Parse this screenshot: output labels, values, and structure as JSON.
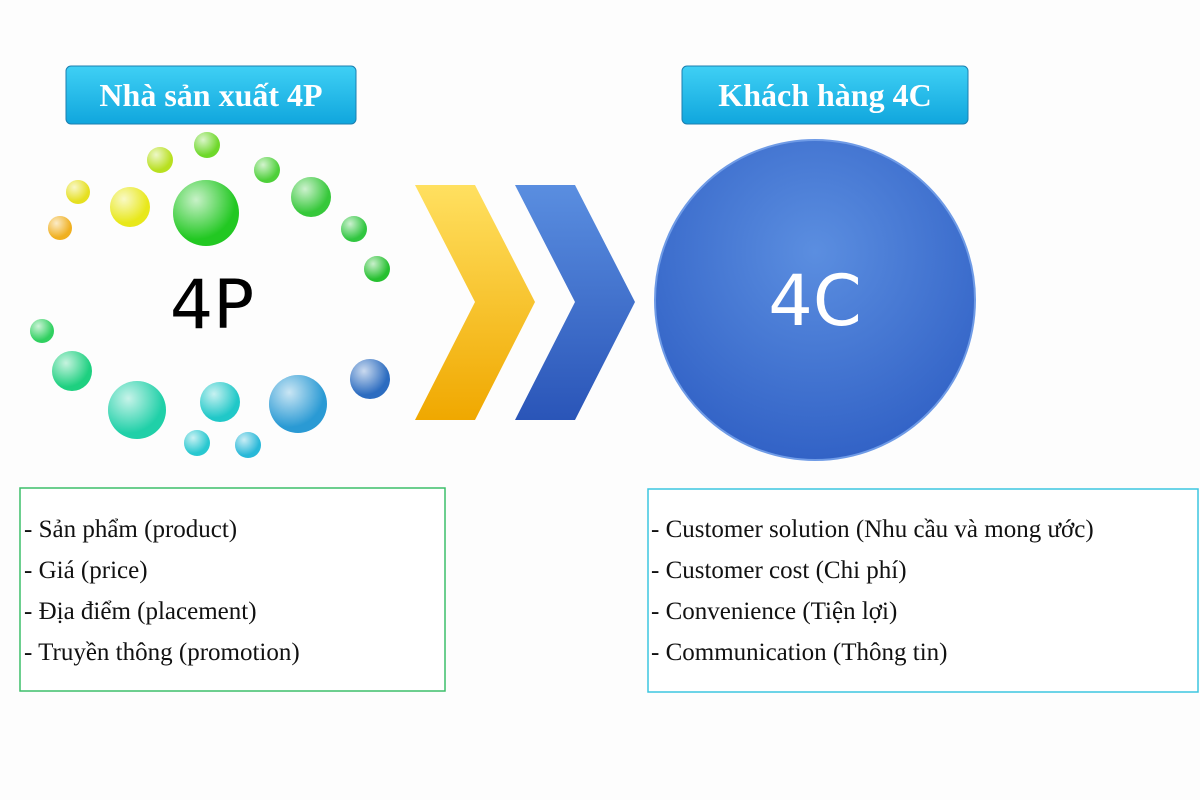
{
  "producer": {
    "title": "Nhà sản xuất 4P",
    "label": "4P",
    "items": [
      "- Sản phẩm (product)",
      "- Giá (price)",
      "- Địa điểm (placement)",
      "- Truyền thông (promotion)"
    ]
  },
  "customer": {
    "title": "Khách hàng 4C",
    "label": "4C",
    "items": [
      "- Customer solution (Nhu cầu và mong ước)",
      "- Customer cost (Chi phí)",
      "- Convenience (Tiện lợi)",
      "- Communication (Thông tin)"
    ]
  }
}
